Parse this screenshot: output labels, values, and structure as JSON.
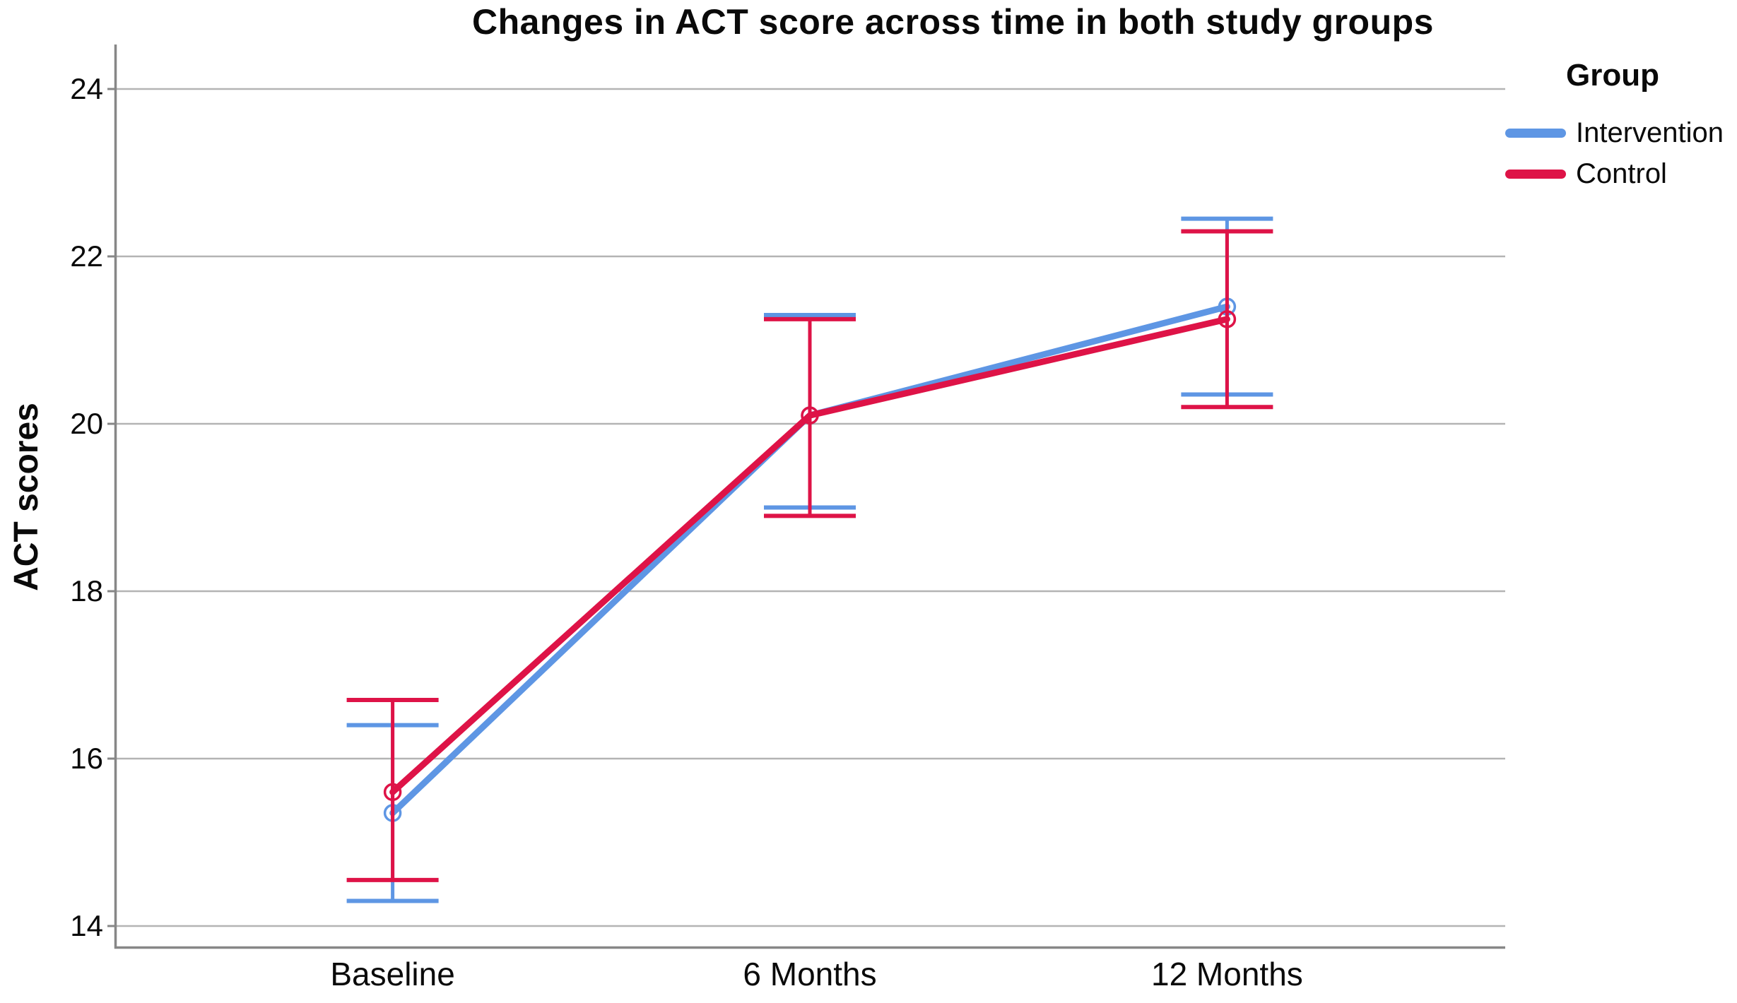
{
  "chart_data": {
    "type": "line",
    "title": "Changes in ACT score across time in both study groups",
    "ylabel": "ACT scores",
    "xlabel": "",
    "categories": [
      "Baseline",
      "6 Months",
      "12 Months"
    ],
    "y_ticks": [
      24,
      22,
      20,
      18,
      16,
      14
    ],
    "ylim": [
      13.7,
      24.5
    ],
    "grid": "horizontal",
    "error_bars": true,
    "legend_title": "Group",
    "legend_position": "top-right",
    "colors": {
      "grid": "#b4b4b4",
      "axis": "#878787",
      "background": "#ffffff",
      "intervention": "#5E96E4",
      "control": "#DE1347"
    },
    "series": [
      {
        "name": "Intervention",
        "color": "#5E96E4",
        "means": [
          15.35,
          20.1,
          21.4
        ],
        "ci_upper": [
          16.4,
          21.3,
          22.45
        ],
        "ci_lower": [
          14.3,
          19.0,
          20.35
        ]
      },
      {
        "name": "Control",
        "color": "#DE1347",
        "means": [
          15.6,
          20.1,
          21.25
        ],
        "ci_upper": [
          16.7,
          21.25,
          22.3
        ],
        "ci_lower": [
          14.55,
          18.9,
          20.2
        ]
      }
    ]
  }
}
